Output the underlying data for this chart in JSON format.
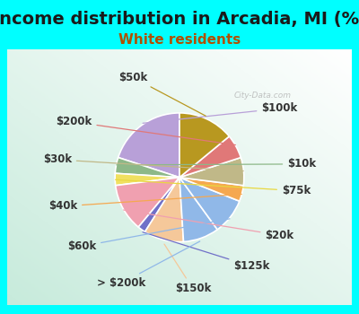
{
  "title": "Income distribution in Arcadia, MI (%)",
  "subtitle": "White residents",
  "title_fontsize": 14,
  "subtitle_fontsize": 11,
  "background_color": "#00FFFF",
  "watermark": "City-Data.com",
  "labels": [
    "$100k",
    "$10k",
    "$75k",
    "$20k",
    "$125k",
    "$150k",
    "> $200k",
    "$60k",
    "$40k",
    "$30k",
    "$200k",
    "$50k"
  ],
  "values": [
    20,
    4,
    3,
    12,
    2,
    10,
    9,
    9,
    4,
    7,
    6,
    14
  ],
  "colors": [
    "#b8a0d8",
    "#8db888",
    "#f0e060",
    "#f0a0b0",
    "#7070c8",
    "#f5c89a",
    "#90b8e8",
    "#90b8e8",
    "#f5a850",
    "#c0b888",
    "#e07878",
    "#b89820"
  ],
  "startangle": 90,
  "label_fontsize": 8.5,
  "label_color": "#333333",
  "line_colors": [
    "#b8a0d8",
    "#8db888",
    "#e8d840",
    "#f0a0b0",
    "#7070c8",
    "#f5c89a",
    "#90b8e8",
    "#90b8e8",
    "#f5a850",
    "#c0b888",
    "#e07878",
    "#b89820"
  ]
}
